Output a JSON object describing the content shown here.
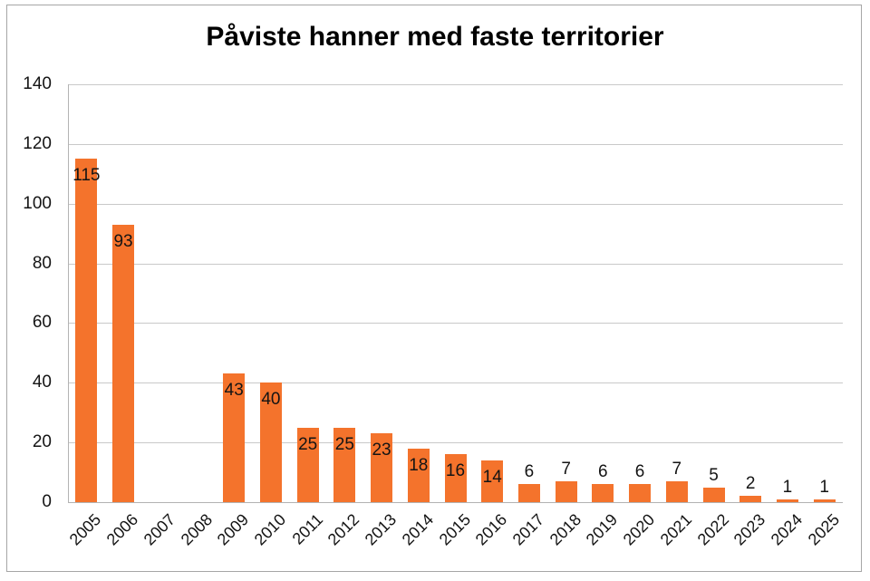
{
  "title": "Påviste hanner med faste territorier",
  "colors": {
    "bar": "#F4732C",
    "gridline": "#C9C9C9",
    "axis_line": "#B3B3B3",
    "outer_border": "#A6A6A6",
    "text": "#141414",
    "title_text": "#000000",
    "background": "#FFFFFF"
  },
  "chart_data": {
    "type": "bar",
    "title": "Påviste hanner med faste territorier",
    "categories": [
      "2005",
      "2006",
      "2007",
      "2008",
      "2009",
      "2010",
      "2011",
      "2012",
      "2013",
      "2014",
      "2015",
      "2016",
      "2017",
      "2018",
      "2019",
      "2020",
      "2021",
      "2022",
      "2023",
      "2024",
      "2025"
    ],
    "values": [
      115,
      93,
      0,
      0,
      43,
      40,
      25,
      25,
      23,
      18,
      16,
      14,
      6,
      7,
      6,
      6,
      7,
      5,
      2,
      1,
      1
    ],
    "data_labels_shown": [
      115,
      93,
      43,
      40,
      25,
      25,
      23,
      18,
      16,
      14,
      6,
      7,
      6,
      6,
      7,
      5,
      2,
      1,
      1
    ],
    "xlabel": "",
    "ylabel": "",
    "ylim": [
      0,
      140
    ],
    "yticks": [
      0,
      20,
      40,
      60,
      80,
      100,
      120,
      140
    ],
    "grid": true,
    "legend": false,
    "bar_color": "#F4732C",
    "x_tick_rotation_deg": 45,
    "data_label_position": "inside-end-or-outside"
  }
}
